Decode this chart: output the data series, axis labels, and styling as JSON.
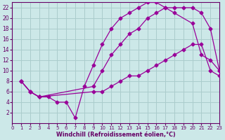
{
  "background_color": "#cce8e8",
  "grid_color": "#aacccc",
  "line_color": "#990099",
  "xlabel": "Windchill (Refroidissement éolien,°C)",
  "xlabel_color": "#660066",
  "tick_color": "#660066",
  "xlim": [
    0,
    23
  ],
  "ylim": [
    0,
    23
  ],
  "xticks": [
    0,
    1,
    2,
    3,
    4,
    5,
    6,
    7,
    8,
    9,
    10,
    11,
    12,
    13,
    14,
    15,
    16,
    17,
    18,
    19,
    20,
    21,
    22,
    23
  ],
  "yticks": [
    2,
    4,
    6,
    8,
    10,
    12,
    14,
    16,
    18,
    20,
    22
  ],
  "line1_x": [
    1,
    2,
    3,
    4,
    5,
    6,
    7,
    8,
    9,
    10,
    11,
    12,
    13,
    14,
    15,
    16,
    17,
    18,
    20,
    21,
    22,
    23
  ],
  "line1_y": [
    8,
    6,
    5,
    5,
    4,
    4,
    1,
    7,
    11,
    15,
    18,
    20,
    21,
    22,
    23,
    23,
    22,
    21,
    19,
    13,
    12,
    10
  ],
  "line2_x": [
    1,
    2,
    3,
    9,
    10,
    11,
    12,
    13,
    14,
    15,
    16,
    17,
    18,
    19,
    20,
    21,
    22,
    23
  ],
  "line2_y": [
    8,
    6,
    5,
    7,
    10,
    13,
    15,
    17,
    18,
    20,
    21,
    22,
    22,
    22,
    22,
    21,
    18,
    10
  ],
  "line3_x": [
    1,
    2,
    3,
    9,
    10,
    11,
    12,
    13,
    14,
    15,
    16,
    17,
    18,
    19,
    20,
    21,
    22,
    23
  ],
  "line3_y": [
    8,
    6,
    5,
    6,
    6,
    7,
    8,
    9,
    9,
    10,
    11,
    12,
    13,
    14,
    15,
    15,
    10,
    9
  ],
  "figsize": [
    3.2,
    2.0
  ],
  "dpi": 100
}
